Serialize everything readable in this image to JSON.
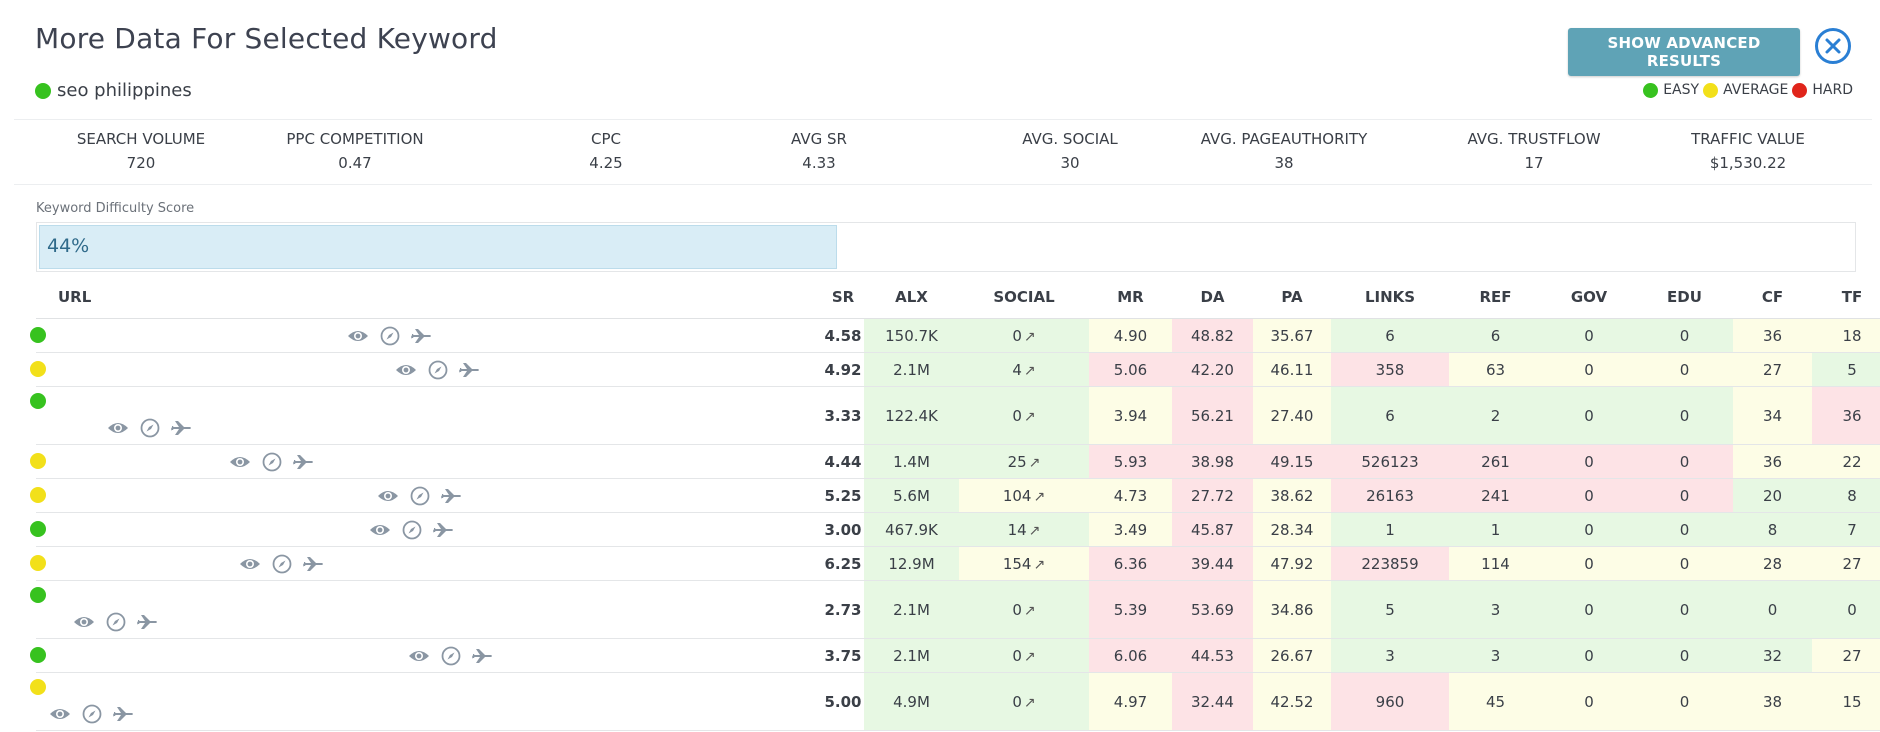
{
  "header": {
    "title": "More Data For Selected Keyword",
    "keyword": "seo philippines",
    "keyword_difficulty_color": "#37c21f",
    "advanced_button": "SHOW ADVANCED RESULTS",
    "close_icon": "close-circle-icon"
  },
  "legend": {
    "easy": "EASY",
    "average": "AVERAGE",
    "hard": "HARD",
    "colors": {
      "easy": "#37c21f",
      "average": "#f2e01a",
      "hard": "#e0251b"
    }
  },
  "stats": [
    {
      "label": "SEARCH VOLUME",
      "value": "720"
    },
    {
      "label": "PPC COMPETITION",
      "value": "0.47"
    },
    {
      "label": "CPC",
      "value": "4.25"
    },
    {
      "label": "AVG SR",
      "value": "4.33"
    },
    {
      "label": "AVG. SOCIAL",
      "value": "30"
    },
    {
      "label": "AVG. PAGEAUTHORITY",
      "value": "38"
    },
    {
      "label": "AVG. TRUSTFLOW",
      "value": "17"
    },
    {
      "label": "TRAFFIC VALUE",
      "value": "$1,530.22"
    }
  ],
  "keyword_difficulty": {
    "label": "Keyword Difficulty Score",
    "value_text": "44%",
    "percent": 44
  },
  "table": {
    "columns": [
      "URL",
      "SR",
      "ALX",
      "SOCIAL",
      "MR",
      "DA",
      "PA",
      "LINKS",
      "REF",
      "GOV",
      "EDU",
      "CF",
      "TF"
    ],
    "rows": [
      {
        "status": "easy",
        "sr": "4.58",
        "alx": "150.7K",
        "social": "0",
        "mr": "4.90",
        "da": "48.82",
        "pa": "35.67",
        "links": "6",
        "ref": "6",
        "gov": "0",
        "edu": "0",
        "cf": "36",
        "tf": "18"
      },
      {
        "status": "average",
        "sr": "4.92",
        "alx": "2.1M",
        "social": "4",
        "mr": "5.06",
        "da": "42.20",
        "pa": "46.11",
        "links": "358",
        "ref": "63",
        "gov": "0",
        "edu": "0",
        "cf": "27",
        "tf": "5"
      },
      {
        "status": "easy",
        "sr": "3.33",
        "alx": "122.4K",
        "social": "0",
        "mr": "3.94",
        "da": "56.21",
        "pa": "27.40",
        "links": "6",
        "ref": "2",
        "gov": "0",
        "edu": "0",
        "cf": "34",
        "tf": "36"
      },
      {
        "status": "average",
        "sr": "4.44",
        "alx": "1.4M",
        "social": "25",
        "mr": "5.93",
        "da": "38.98",
        "pa": "49.15",
        "links": "526123",
        "ref": "261",
        "gov": "0",
        "edu": "0",
        "cf": "36",
        "tf": "22"
      },
      {
        "status": "average",
        "sr": "5.25",
        "alx": "5.6M",
        "social": "104",
        "mr": "4.73",
        "da": "27.72",
        "pa": "38.62",
        "links": "26163",
        "ref": "241",
        "gov": "0",
        "edu": "0",
        "cf": "20",
        "tf": "8"
      },
      {
        "status": "easy",
        "sr": "3.00",
        "alx": "467.9K",
        "social": "14",
        "mr": "3.49",
        "da": "45.87",
        "pa": "28.34",
        "links": "1",
        "ref": "1",
        "gov": "0",
        "edu": "0",
        "cf": "8",
        "tf": "7"
      },
      {
        "status": "average",
        "sr": "6.25",
        "alx": "12.9M",
        "social": "154",
        "mr": "6.36",
        "da": "39.44",
        "pa": "47.92",
        "links": "223859",
        "ref": "114",
        "gov": "0",
        "edu": "0",
        "cf": "28",
        "tf": "27"
      },
      {
        "status": "easy",
        "sr": "2.73",
        "alx": "2.1M",
        "social": "0",
        "mr": "5.39",
        "da": "53.69",
        "pa": "34.86",
        "links": "5",
        "ref": "3",
        "gov": "0",
        "edu": "0",
        "cf": "0",
        "tf": "0"
      },
      {
        "status": "easy",
        "sr": "3.75",
        "alx": "2.1M",
        "social": "0",
        "mr": "6.06",
        "da": "44.53",
        "pa": "26.67",
        "links": "3",
        "ref": "3",
        "gov": "0",
        "edu": "0",
        "cf": "32",
        "tf": "27"
      },
      {
        "status": "average",
        "sr": "5.00",
        "alx": "4.9M",
        "social": "0",
        "mr": "4.97",
        "da": "32.44",
        "pa": "42.52",
        "links": "960",
        "ref": "45",
        "gov": "0",
        "edu": "0",
        "cf": "38",
        "tf": "15"
      }
    ],
    "row_icons": [
      "eye-icon",
      "compass-icon",
      "plane-icon"
    ],
    "social_arrow": "↗"
  }
}
